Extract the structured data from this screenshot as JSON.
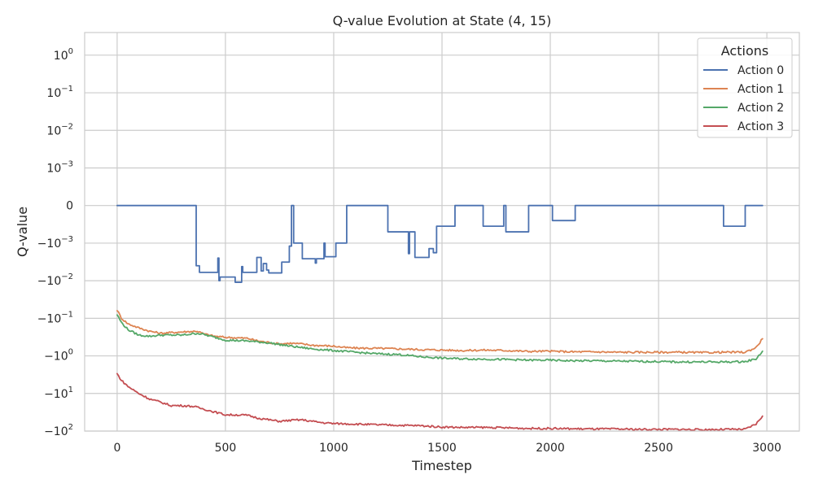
{
  "chart_data": {
    "type": "line",
    "title": "Q-value Evolution at State (4, 15)",
    "xlabel": "Timestep",
    "ylabel": "Q-value",
    "yscale": "symlog",
    "grid": true,
    "xlim": [
      -150,
      3150
    ],
    "ylim": [
      -100,
      4
    ],
    "x_ticks": [
      0,
      500,
      1000,
      1500,
      2000,
      2500,
      3000
    ],
    "x_tick_labels": [
      "0",
      "500",
      "1000",
      "1500",
      "2000",
      "2500",
      "3000"
    ],
    "y_ticks": [
      1,
      0.1,
      0.01,
      0.001,
      0,
      -0.001,
      -0.01,
      -0.1,
      -1,
      -10,
      -100
    ],
    "y_tick_labels": [
      {
        "base": "10",
        "exp": "0"
      },
      {
        "base": "10",
        "exp": "−1"
      },
      {
        "base": "10",
        "exp": "−2"
      },
      {
        "base": "10",
        "exp": "−3"
      },
      {
        "base": "0",
        "exp": ""
      },
      {
        "base": "−10",
        "exp": "−3"
      },
      {
        "base": "−10",
        "exp": "−2"
      },
      {
        "base": "−10",
        "exp": "−1"
      },
      {
        "base": "−10",
        "exp": "0"
      },
      {
        "base": "−10",
        "exp": "1"
      },
      {
        "base": "−10",
        "exp": "2"
      }
    ],
    "legend": {
      "title": "Actions",
      "position": "top-right"
    },
    "series": [
      {
        "name": "Action 0",
        "color": "#4c72b0",
        "style": "step",
        "points": [
          [
            0,
            0
          ],
          [
            365,
            0
          ],
          [
            365,
            -0.004
          ],
          [
            380,
            -0.004
          ],
          [
            380,
            -0.006
          ],
          [
            465,
            -0.006
          ],
          [
            465,
            -0.0025
          ],
          [
            470,
            -0.0025
          ],
          [
            470,
            -0.01
          ],
          [
            475,
            -0.01
          ],
          [
            475,
            -0.008
          ],
          [
            545,
            -0.008
          ],
          [
            545,
            -0.011
          ],
          [
            575,
            -0.011
          ],
          [
            575,
            -0.0042
          ],
          [
            580,
            -0.0042
          ],
          [
            580,
            -0.006
          ],
          [
            645,
            -0.006
          ],
          [
            645,
            -0.0024
          ],
          [
            665,
            -0.0024
          ],
          [
            665,
            -0.0055
          ],
          [
            675,
            -0.0055
          ],
          [
            675,
            -0.0035
          ],
          [
            690,
            -0.0035
          ],
          [
            690,
            -0.0052
          ],
          [
            700,
            -0.0052
          ],
          [
            700,
            -0.0062
          ],
          [
            760,
            -0.0062
          ],
          [
            760,
            -0.0032
          ],
          [
            795,
            -0.0032
          ],
          [
            795,
            -0.0012
          ],
          [
            805,
            -0.0012
          ],
          [
            805,
            0
          ],
          [
            815,
            0
          ],
          [
            815,
            -0.001
          ],
          [
            855,
            -0.001
          ],
          [
            855,
            -0.0026
          ],
          [
            915,
            -0.0026
          ],
          [
            915,
            -0.0034
          ],
          [
            920,
            -0.0034
          ],
          [
            920,
            -0.0026
          ],
          [
            955,
            -0.0026
          ],
          [
            955,
            -0.001
          ],
          [
            960,
            -0.001
          ],
          [
            960,
            -0.0023
          ],
          [
            1010,
            -0.0023
          ],
          [
            1010,
            -0.001
          ],
          [
            1060,
            -0.001
          ],
          [
            1060,
            0
          ],
          [
            1250,
            0
          ],
          [
            1250,
            -0.0007
          ],
          [
            1345,
            -0.0007
          ],
          [
            1345,
            -0.0019
          ],
          [
            1350,
            -0.0019
          ],
          [
            1350,
            -0.0007
          ],
          [
            1375,
            -0.0007
          ],
          [
            1375,
            -0.0024
          ],
          [
            1440,
            -0.0024
          ],
          [
            1440,
            -0.0014
          ],
          [
            1460,
            -0.0014
          ],
          [
            1460,
            -0.0018
          ],
          [
            1475,
            -0.0018
          ],
          [
            1475,
            -0.00055
          ],
          [
            1560,
            -0.00055
          ],
          [
            1560,
            0
          ],
          [
            1690,
            0
          ],
          [
            1690,
            -0.00055
          ],
          [
            1785,
            -0.00055
          ],
          [
            1785,
            0
          ],
          [
            1795,
            0
          ],
          [
            1795,
            -0.0007
          ],
          [
            1900,
            -0.0007
          ],
          [
            1900,
            0
          ],
          [
            2010,
            0
          ],
          [
            2010,
            -0.0004
          ],
          [
            2115,
            -0.0004
          ],
          [
            2115,
            0
          ],
          [
            2800,
            0
          ],
          [
            2800,
            -0.00055
          ],
          [
            2900,
            -0.00055
          ],
          [
            2900,
            0
          ],
          [
            2980,
            0
          ]
        ]
      },
      {
        "name": "Action 1",
        "color": "#dd8452",
        "style": "noisy",
        "points": [
          [
            0,
            -0.06
          ],
          [
            20,
            -0.1
          ],
          [
            50,
            -0.14
          ],
          [
            100,
            -0.18
          ],
          [
            150,
            -0.22
          ],
          [
            200,
            -0.25
          ],
          [
            300,
            -0.23
          ],
          [
            370,
            -0.22
          ],
          [
            400,
            -0.26
          ],
          [
            450,
            -0.3
          ],
          [
            500,
            -0.32
          ],
          [
            600,
            -0.34
          ],
          [
            650,
            -0.4
          ],
          [
            700,
            -0.44
          ],
          [
            750,
            -0.48
          ],
          [
            800,
            -0.46
          ],
          [
            850,
            -0.48
          ],
          [
            900,
            -0.52
          ],
          [
            1000,
            -0.55
          ],
          [
            1050,
            -0.6
          ],
          [
            1100,
            -0.62
          ],
          [
            1200,
            -0.63
          ],
          [
            1300,
            -0.65
          ],
          [
            1400,
            -0.68
          ],
          [
            1500,
            -0.7
          ],
          [
            1600,
            -0.72
          ],
          [
            1700,
            -0.7
          ],
          [
            1800,
            -0.72
          ],
          [
            1900,
            -0.76
          ],
          [
            2000,
            -0.75
          ],
          [
            2100,
            -0.78
          ],
          [
            2200,
            -0.78
          ],
          [
            2300,
            -0.8
          ],
          [
            2400,
            -0.8
          ],
          [
            2500,
            -0.8
          ],
          [
            2600,
            -0.8
          ],
          [
            2700,
            -0.82
          ],
          [
            2800,
            -0.8
          ],
          [
            2900,
            -0.8
          ],
          [
            2950,
            -0.6
          ],
          [
            2980,
            -0.35
          ]
        ]
      },
      {
        "name": "Action 2",
        "color": "#55a868",
        "style": "noisy",
        "points": [
          [
            0,
            -0.08
          ],
          [
            20,
            -0.13
          ],
          [
            50,
            -0.2
          ],
          [
            100,
            -0.28
          ],
          [
            150,
            -0.3
          ],
          [
            200,
            -0.28
          ],
          [
            300,
            -0.28
          ],
          [
            370,
            -0.25
          ],
          [
            400,
            -0.27
          ],
          [
            450,
            -0.32
          ],
          [
            500,
            -0.38
          ],
          [
            600,
            -0.4
          ],
          [
            700,
            -0.45
          ],
          [
            800,
            -0.55
          ],
          [
            900,
            -0.65
          ],
          [
            1000,
            -0.72
          ],
          [
            1100,
            -0.8
          ],
          [
            1200,
            -0.88
          ],
          [
            1300,
            -0.92
          ],
          [
            1400,
            -1.05
          ],
          [
            1500,
            -1.15
          ],
          [
            1600,
            -1.2
          ],
          [
            1700,
            -1.22
          ],
          [
            1800,
            -1.25
          ],
          [
            1900,
            -1.3
          ],
          [
            2000,
            -1.3
          ],
          [
            2100,
            -1.35
          ],
          [
            2200,
            -1.35
          ],
          [
            2300,
            -1.38
          ],
          [
            2400,
            -1.4
          ],
          [
            2500,
            -1.42
          ],
          [
            2600,
            -1.45
          ],
          [
            2700,
            -1.45
          ],
          [
            2800,
            -1.45
          ],
          [
            2900,
            -1.42
          ],
          [
            2950,
            -1.2
          ],
          [
            2980,
            -0.75
          ]
        ]
      },
      {
        "name": "Action 3",
        "color": "#c44e52",
        "style": "noisy",
        "points": [
          [
            0,
            -3
          ],
          [
            20,
            -4.5
          ],
          [
            50,
            -6.5
          ],
          [
            100,
            -10
          ],
          [
            150,
            -14
          ],
          [
            200,
            -17
          ],
          [
            250,
            -21
          ],
          [
            300,
            -21
          ],
          [
            350,
            -22
          ],
          [
            400,
            -26
          ],
          [
            450,
            -31
          ],
          [
            500,
            -37
          ],
          [
            550,
            -37
          ],
          [
            600,
            -38
          ],
          [
            650,
            -45
          ],
          [
            700,
            -50
          ],
          [
            750,
            -55
          ],
          [
            800,
            -52
          ],
          [
            850,
            -50
          ],
          [
            900,
            -55
          ],
          [
            950,
            -60
          ],
          [
            1000,
            -63
          ],
          [
            1100,
            -65
          ],
          [
            1200,
            -68
          ],
          [
            1300,
            -70
          ],
          [
            1400,
            -72
          ],
          [
            1500,
            -78
          ],
          [
            1600,
            -80
          ],
          [
            1700,
            -80
          ],
          [
            1800,
            -82
          ],
          [
            1900,
            -85
          ],
          [
            2000,
            -85
          ],
          [
            2100,
            -87
          ],
          [
            2200,
            -88
          ],
          [
            2300,
            -88
          ],
          [
            2400,
            -90
          ],
          [
            2500,
            -90
          ],
          [
            2600,
            -90
          ],
          [
            2700,
            -92
          ],
          [
            2800,
            -90
          ],
          [
            2900,
            -90
          ],
          [
            2950,
            -65
          ],
          [
            2980,
            -40
          ]
        ]
      }
    ]
  }
}
